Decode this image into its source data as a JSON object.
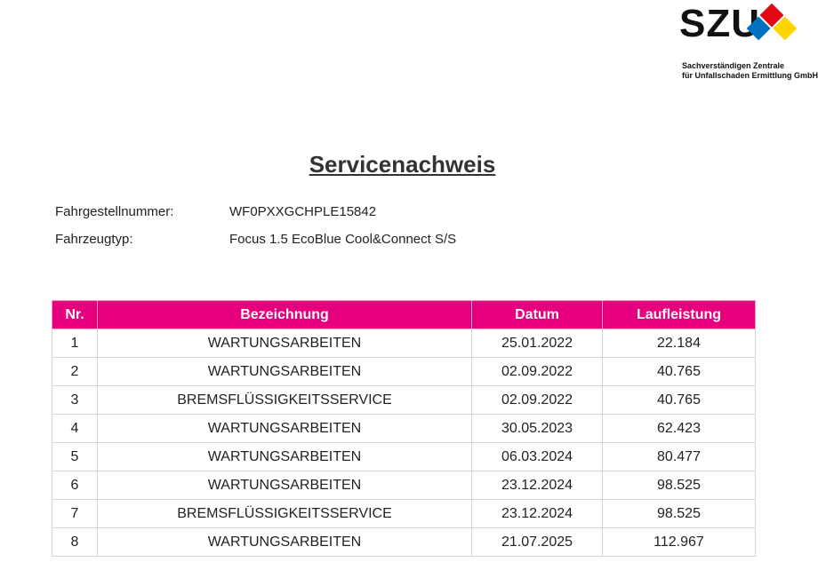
{
  "logo": {
    "name": "SZU",
    "line1": "Sachverständigen Zentrale",
    "line2": "für Unfallschaden Ermittlung GmbH"
  },
  "title": "Servicenachweis",
  "fields": [
    {
      "label": "Fahrgestellnummer:",
      "value": "WF0PXXGCHPLE15842"
    },
    {
      "label": "Fahrzeugtyp:",
      "value": "Focus 1.5 EcoBlue Cool&Connect S/S"
    }
  ],
  "table": {
    "header": [
      "Nr.",
      "Bezeichnung",
      "Datum",
      "Laufleistung"
    ],
    "rows": [
      [
        1,
        "WARTUNGSARBEITEN",
        "25.01.2022",
        "22.184"
      ],
      [
        2,
        "WARTUNGSARBEITEN",
        "02.09.2022",
        "40.765"
      ],
      [
        3,
        "BREMSFLÜSSIGKEITSSERVICE",
        "02.09.2022",
        "40.765"
      ],
      [
        4,
        "WARTUNGSARBEITEN",
        "30.05.2023",
        "62.423"
      ],
      [
        5,
        "WARTUNGSARBEITEN",
        "06.03.2024",
        "80.477"
      ],
      [
        6,
        "WARTUNGSARBEITEN",
        "23.12.2024",
        "98.525"
      ],
      [
        7,
        "BREMSFLÜSSIGKEITSSERVICE",
        "23.12.2024",
        "98.525"
      ],
      [
        8,
        "WARTUNGSARBEITEN",
        "21.07.2025",
        "112.967"
      ]
    ]
  }
}
